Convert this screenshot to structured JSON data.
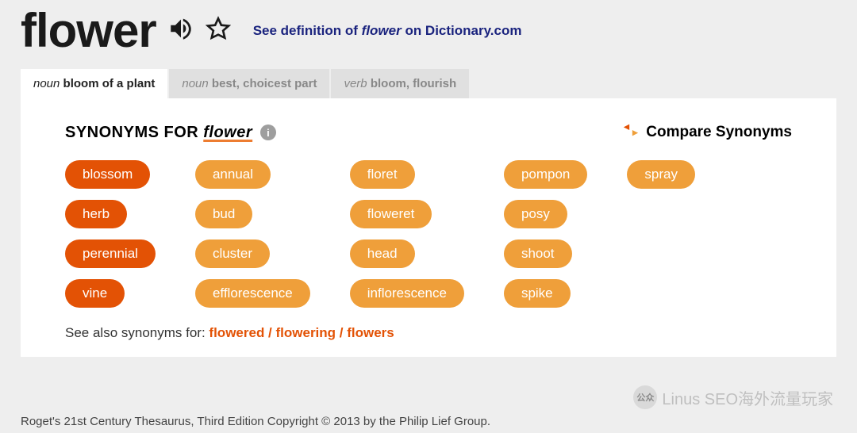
{
  "colors": {
    "page_bg": "#eeeeee",
    "panel_bg": "#ffffff",
    "tab_inactive_bg": "#e0e0e0",
    "tab_inactive_text": "#888888",
    "tab_active_text": "#222222",
    "def_link": "#1a237e",
    "underline_accent": "#ed7d31",
    "see_also_link": "#e35205",
    "pill_strong": "#e35205",
    "pill_normal": "#ef9f3a",
    "info_bg": "#9e9e9e",
    "compare_arrow_left": "#e35205",
    "compare_arrow_right": "#ef9f3a"
  },
  "header": {
    "word": "flower",
    "definition_link_prefix": "See definition of ",
    "definition_link_word": "flower",
    "definition_link_suffix": " on Dictionary.com"
  },
  "tabs": [
    {
      "pos": "noun",
      "gloss": "bloom of a plant",
      "active": true
    },
    {
      "pos": "noun",
      "gloss": "best, choicest part",
      "active": false
    },
    {
      "pos": "verb",
      "gloss": "bloom, flourish",
      "active": false
    }
  ],
  "panel": {
    "title_prefix": "SYNONYMS FOR",
    "title_word": "flower",
    "compare_label": "Compare Synonyms",
    "grid_cols": 5,
    "synonyms": [
      {
        "label": "blossom",
        "strength": "strong"
      },
      {
        "label": "annual",
        "strength": "normal"
      },
      {
        "label": "floret",
        "strength": "normal"
      },
      {
        "label": "pompon",
        "strength": "normal"
      },
      {
        "label": "spray",
        "strength": "normal"
      },
      {
        "label": "herb",
        "strength": "strong"
      },
      {
        "label": "bud",
        "strength": "normal"
      },
      {
        "label": "floweret",
        "strength": "normal"
      },
      {
        "label": "posy",
        "strength": "normal"
      },
      null,
      {
        "label": "perennial",
        "strength": "strong"
      },
      {
        "label": "cluster",
        "strength": "normal"
      },
      {
        "label": "head",
        "strength": "normal"
      },
      {
        "label": "shoot",
        "strength": "normal"
      },
      null,
      {
        "label": "vine",
        "strength": "strong"
      },
      {
        "label": "efflorescence",
        "strength": "normal"
      },
      {
        "label": "inflorescence",
        "strength": "normal"
      },
      {
        "label": "spike",
        "strength": "normal"
      },
      null
    ],
    "see_also_prefix": "See also synonyms for: ",
    "see_also_links": "flowered / flowering / flowers"
  },
  "footer": "Roget's 21st Century Thesaurus, Third Edition Copyright © 2013 by the Philip Lief Group.",
  "watermark": "Linus SEO海外流量玩家"
}
